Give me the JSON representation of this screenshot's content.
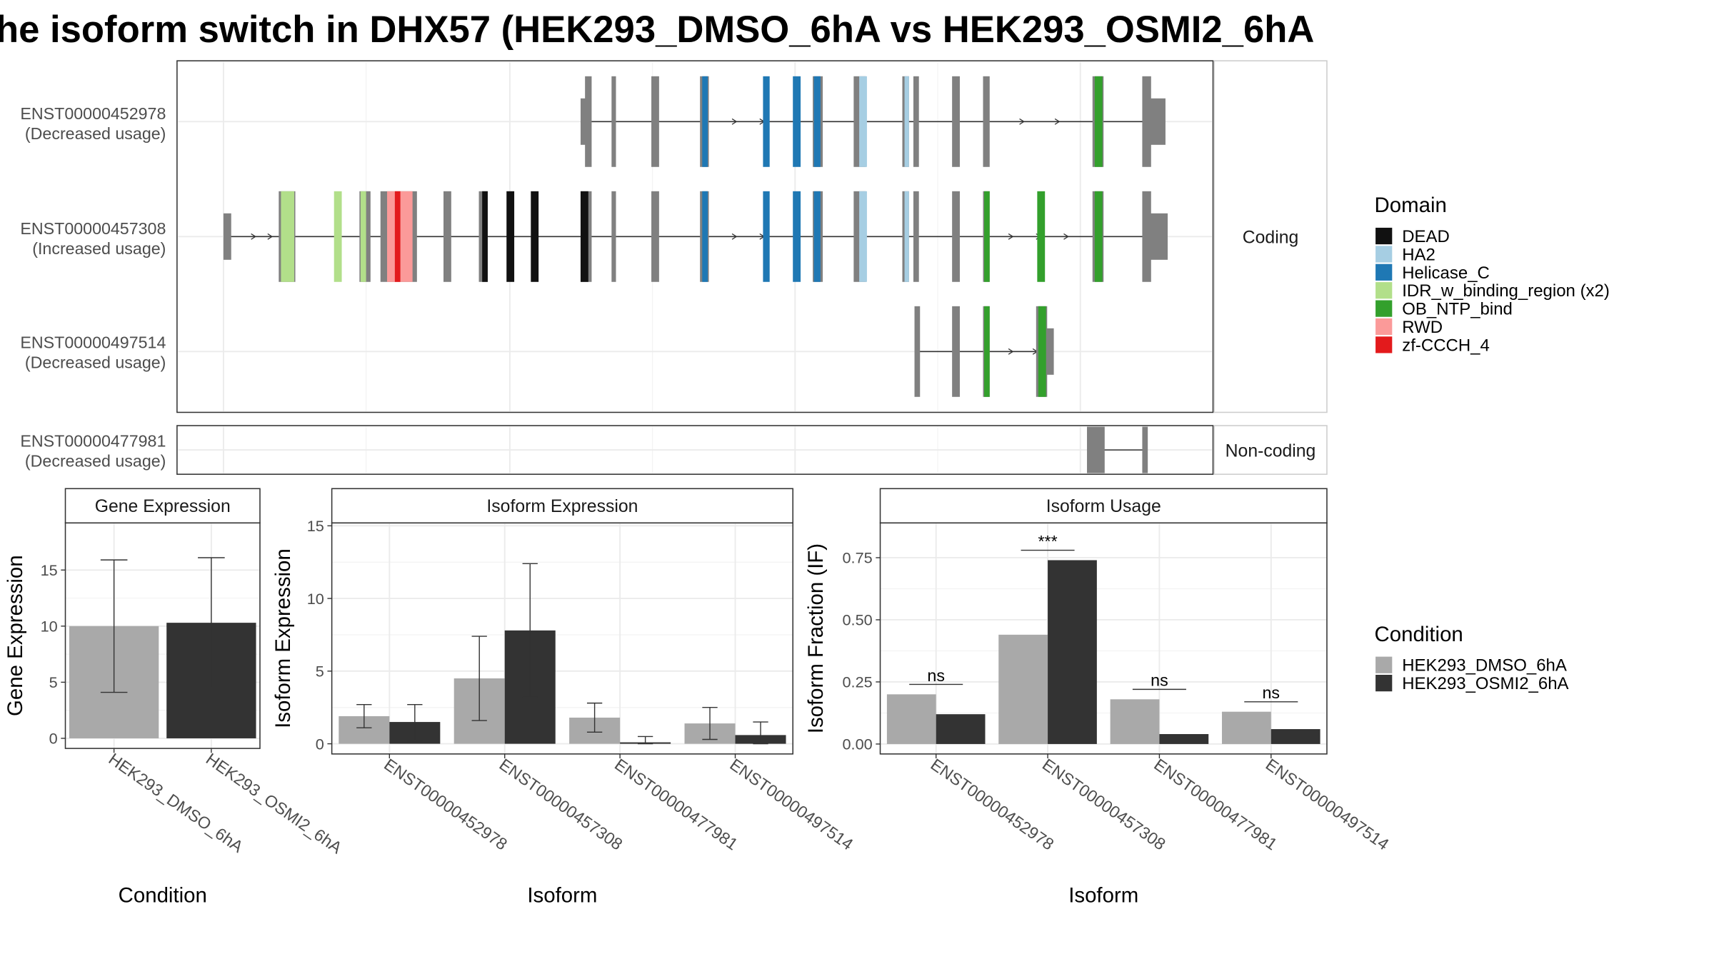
{
  "title": "he isoform switch in DHX57 (HEK293_DMSO_6hA vs HEK293_OSMI2_6hA",
  "structure": {
    "coding_strip": "Coding",
    "noncoding_strip": "Non-coding",
    "transcripts": [
      {
        "id": "ENST00000452978",
        "usage": "(Decreased usage)",
        "group": "coding"
      },
      {
        "id": "ENST00000457308",
        "usage": "(Increased usage)",
        "group": "coding"
      },
      {
        "id": "ENST00000497514",
        "usage": "(Decreased usage)",
        "group": "coding"
      },
      {
        "id": "ENST00000477981",
        "usage": "(Decreased usage)",
        "group": "noncoding"
      }
    ]
  },
  "legends": {
    "domain_title": "Domain",
    "domains": [
      {
        "name": "DEAD",
        "color": "#111111"
      },
      {
        "name": "HA2",
        "color": "#a6cee3"
      },
      {
        "name": "Helicase_C",
        "color": "#1f78b4"
      },
      {
        "name": "IDR_w_binding_region (x2)",
        "color": "#b2df8a"
      },
      {
        "name": "OB_NTP_bind",
        "color": "#33a02c"
      },
      {
        "name": "RWD",
        "color": "#fb9a99"
      },
      {
        "name": "zf-CCCH_4",
        "color": "#e31a1c"
      }
    ],
    "condition_title": "Condition",
    "conditions": [
      {
        "name": "HEK293_DMSO_6hA",
        "color": "#a9a9a9"
      },
      {
        "name": "HEK293_OSMI2_6hA",
        "color": "#333333"
      }
    ]
  },
  "colors": {
    "exon": "#808080",
    "panel_border": "#333333",
    "grid": "#ebebeb",
    "strip_border": "#cccccc"
  },
  "chart_data": [
    {
      "type": "bar",
      "title": "Gene Expression",
      "xlabel": "Condition",
      "ylabel": "Gene Expression",
      "categories": [
        "HEK293_DMSO_6hA",
        "HEK293_OSMI2_6hA"
      ],
      "series": [
        {
          "name": "HEK293_DMSO_6hA",
          "values": [
            10.0,
            null
          ],
          "err_low": [
            4.1,
            null
          ],
          "err_high": [
            15.9,
            null
          ]
        },
        {
          "name": "HEK293_OSMI2_6hA",
          "values": [
            null,
            10.3
          ],
          "err_low": [
            null,
            4.5
          ],
          "err_high": [
            null,
            16.1
          ]
        }
      ],
      "yticks": [
        0,
        5,
        10,
        15
      ],
      "ylim": [
        -0.9,
        19.2
      ]
    },
    {
      "type": "bar",
      "title": "Isoform Expression",
      "xlabel": "Isoform",
      "ylabel": "Isoform Expression",
      "categories": [
        "ENST00000452978",
        "ENST00000457308",
        "ENST00000477981",
        "ENST00000497514"
      ],
      "series": [
        {
          "name": "HEK293_DMSO_6hA",
          "values": [
            1.9,
            4.5,
            1.8,
            1.4
          ],
          "err_low": [
            1.1,
            1.6,
            0.8,
            0.3
          ],
          "err_high": [
            2.7,
            7.4,
            2.8,
            2.5
          ]
        },
        {
          "name": "HEK293_OSMI2_6hA",
          "values": [
            1.5,
            7.8,
            0.1,
            0.6
          ],
          "err_low": [
            0.2,
            3.2,
            0.0,
            0.0
          ],
          "err_high": [
            2.7,
            12.4,
            0.5,
            1.5
          ]
        }
      ],
      "yticks": [
        0,
        5,
        10,
        15
      ],
      "ylim": [
        -0.7,
        15.2
      ]
    },
    {
      "type": "bar",
      "title": "Isoform Usage",
      "xlabel": "Isoform",
      "ylabel": "Isoform Fraction (IF)",
      "categories": [
        "ENST00000452978",
        "ENST00000457308",
        "ENST00000477981",
        "ENST00000497514"
      ],
      "series": [
        {
          "name": "HEK293_DMSO_6hA",
          "values": [
            0.2,
            0.44,
            0.18,
            0.13
          ]
        },
        {
          "name": "HEK293_OSMI2_6hA",
          "values": [
            0.12,
            0.74,
            0.04,
            0.06
          ]
        }
      ],
      "significance": [
        "ns",
        "***",
        "ns",
        "ns"
      ],
      "yticks": [
        "0.00",
        "0.25",
        "0.50",
        "0.75"
      ],
      "ylim": [
        -0.04,
        0.89
      ]
    }
  ]
}
